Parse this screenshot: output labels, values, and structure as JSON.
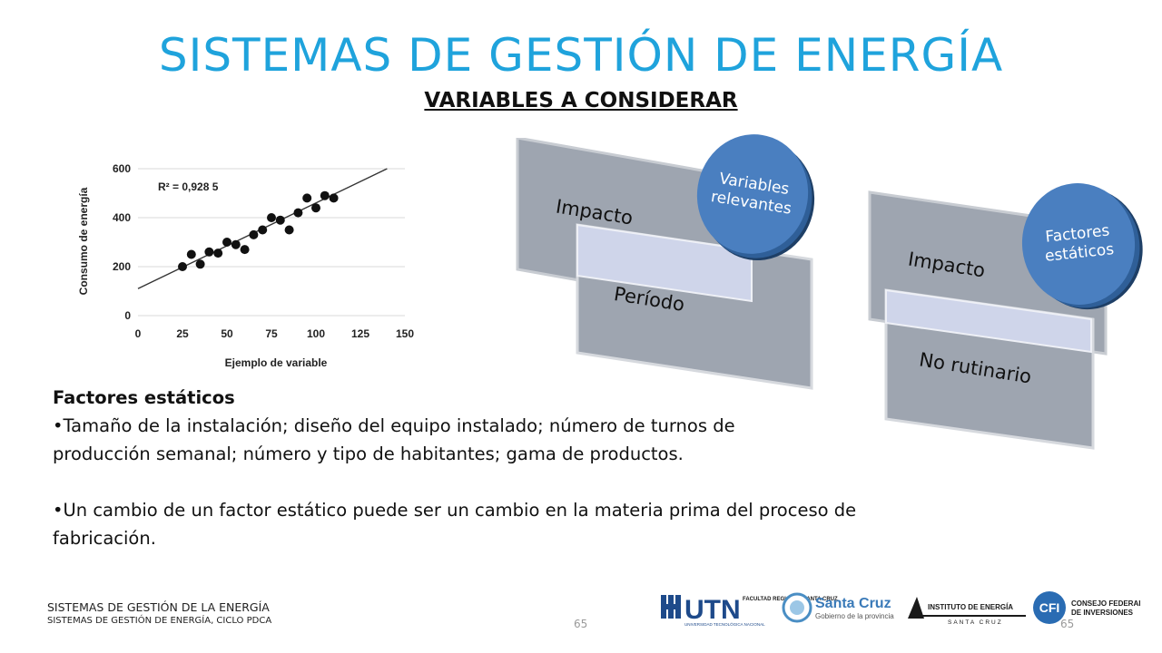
{
  "slide": {
    "title": "SISTEMAS DE GESTIÓN DE ENERGÍA",
    "subtitle": "VARIABLES A CONSIDERAR"
  },
  "chart_data": {
    "type": "scatter",
    "xlabel": "Ejemplo de variable",
    "ylabel": "Consumo de energía",
    "xlim": [
      0,
      150
    ],
    "ylim": [
      0,
      600
    ],
    "xticks": [
      0,
      25,
      50,
      75,
      100,
      125,
      150
    ],
    "yticks": [
      0,
      200,
      400,
      600
    ],
    "annotation": "R² = 0,928 5",
    "grid": true,
    "points": [
      {
        "x": 25,
        "y": 200
      },
      {
        "x": 30,
        "y": 250
      },
      {
        "x": 35,
        "y": 210
      },
      {
        "x": 40,
        "y": 260
      },
      {
        "x": 45,
        "y": 255
      },
      {
        "x": 50,
        "y": 300
      },
      {
        "x": 55,
        "y": 290
      },
      {
        "x": 60,
        "y": 270
      },
      {
        "x": 65,
        "y": 330
      },
      {
        "x": 70,
        "y": 350
      },
      {
        "x": 75,
        "y": 400
      },
      {
        "x": 80,
        "y": 390
      },
      {
        "x": 85,
        "y": 350
      },
      {
        "x": 90,
        "y": 420
      },
      {
        "x": 95,
        "y": 480
      },
      {
        "x": 100,
        "y": 440
      },
      {
        "x": 105,
        "y": 490
      },
      {
        "x": 110,
        "y": 480
      }
    ],
    "trendline": [
      {
        "x": 0,
        "y": 110
      },
      {
        "x": 140,
        "y": 600
      }
    ]
  },
  "diagram": {
    "left": {
      "card1": "Impacto",
      "card2": "Período",
      "circle": "Variables relevantes"
    },
    "right": {
      "card1": "Impacto",
      "card2": "No rutinario",
      "circle": "Factores estáticos"
    }
  },
  "body": {
    "heading": "Factores estáticos",
    "bullet1": "•Tamaño de la instalación; diseño del equipo instalado; número de  turnos de producción semanal; número y tipo de habitantes; gama de productos.",
    "bullet2": "•Un cambio de un factor estático puede ser un cambio en la materia prima del proceso de fabricación."
  },
  "footer": {
    "line1": "SISTEMAS DE GESTIÓN DE LA ENERGÍA",
    "line2": "SISTEMAS DE GESTIÓN DE ENERGÍA, CICLO PDCA",
    "page_center": "65",
    "page_right": "65"
  },
  "logos": {
    "utn": "UTN",
    "utn_sub": "FACULTAD REGIONAL SANTA CRUZ",
    "utn_small": "UNIVERSIDAD TECNOLÓGICA NACIONAL",
    "santacruz": "Santa Cruz",
    "santacruz_sub": "Gobierno de la provincia",
    "instituto": "INSTITUTO DE ENERGÍA",
    "instituto_sub": "SANTA CRUZ",
    "cfi": "CFI",
    "cfi_sub1": "CONSEJO FEDERAL",
    "cfi_sub2": "DE INVERSIONES"
  }
}
